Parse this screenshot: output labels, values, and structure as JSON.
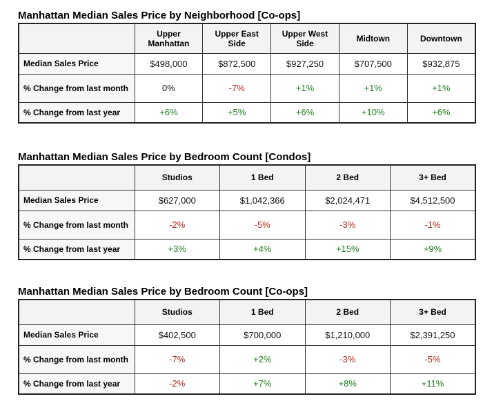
{
  "tables": [
    {
      "title": "Manhattan Median Sales Price by Neighborhood [Co-ops]",
      "columns": [
        "Upper Manhattan",
        "Upper East Side",
        "Upper West Side",
        "Midtown",
        "Downtown"
      ],
      "rows": [
        {
          "label": "Median Sales Price",
          "cells": [
            {
              "text": "$498,000",
              "tone": "neu"
            },
            {
              "text": "$872,500",
              "tone": "neu"
            },
            {
              "text": "$927,250",
              "tone": "neu"
            },
            {
              "text": "$707,500",
              "tone": "neu"
            },
            {
              "text": "$932,875",
              "tone": "neu"
            }
          ]
        },
        {
          "label": "% Change from last month",
          "cells": [
            {
              "text": "0%",
              "tone": "neu"
            },
            {
              "text": "-7%",
              "tone": "neg"
            },
            {
              "text": "+1%",
              "tone": "pos"
            },
            {
              "text": "+1%",
              "tone": "pos"
            },
            {
              "text": "+1%",
              "tone": "pos"
            }
          ]
        },
        {
          "label": "% Change from last year",
          "cells": [
            {
              "text": "+6%",
              "tone": "pos"
            },
            {
              "text": "+5%",
              "tone": "pos"
            },
            {
              "text": "+6%",
              "tone": "pos"
            },
            {
              "text": "+10%",
              "tone": "pos"
            },
            {
              "text": "+6%",
              "tone": "pos"
            }
          ]
        }
      ]
    },
    {
      "title": "Manhattan Median Sales Price by Bedroom Count [Condos]",
      "columns": [
        "Studios",
        "1 Bed",
        "2 Bed",
        "3+ Bed"
      ],
      "rows": [
        {
          "label": "Median Sales Price",
          "cells": [
            {
              "text": "$627,000",
              "tone": "neu"
            },
            {
              "text": "$1,042,366",
              "tone": "neu"
            },
            {
              "text": "$2,024,471",
              "tone": "neu"
            },
            {
              "text": "$4,512,500",
              "tone": "neu"
            }
          ]
        },
        {
          "label": "% Change from last month",
          "cells": [
            {
              "text": "-2%",
              "tone": "neg"
            },
            {
              "text": "-5%",
              "tone": "neg"
            },
            {
              "text": "-3%",
              "tone": "neg"
            },
            {
              "text": "-1%",
              "tone": "neg"
            }
          ]
        },
        {
          "label": "% Change from last year",
          "cells": [
            {
              "text": "+3%",
              "tone": "pos"
            },
            {
              "text": "+4%",
              "tone": "pos"
            },
            {
              "text": "+15%",
              "tone": "pos"
            },
            {
              "text": "+9%",
              "tone": "pos"
            }
          ]
        }
      ]
    },
    {
      "title": "Manhattan Median Sales Price by Bedroom Count [Co-ops]",
      "columns": [
        "Studios",
        "1 Bed",
        "2 Bed",
        "3+ Bed"
      ],
      "rows": [
        {
          "label": "Median Sales Price",
          "cells": [
            {
              "text": "$402,500",
              "tone": "neu"
            },
            {
              "text": "$700,000",
              "tone": "neu"
            },
            {
              "text": "$1,210,000",
              "tone": "neu"
            },
            {
              "text": "$2,391,250",
              "tone": "neu"
            }
          ]
        },
        {
          "label": "% Change from last month",
          "cells": [
            {
              "text": "-7%",
              "tone": "neg"
            },
            {
              "text": "+2%",
              "tone": "pos"
            },
            {
              "text": "-3%",
              "tone": "neg"
            },
            {
              "text": "-5%",
              "tone": "neg"
            }
          ]
        },
        {
          "label": "% Change from last year",
          "cells": [
            {
              "text": "-2%",
              "tone": "neg"
            },
            {
              "text": "+7%",
              "tone": "pos"
            },
            {
              "text": "+8%",
              "tone": "pos"
            },
            {
              "text": "+11%",
              "tone": "pos"
            }
          ]
        }
      ]
    }
  ],
  "colors": {
    "positive": "#1f7a1f",
    "negative": "#b3261e",
    "neutral": "#111111"
  }
}
